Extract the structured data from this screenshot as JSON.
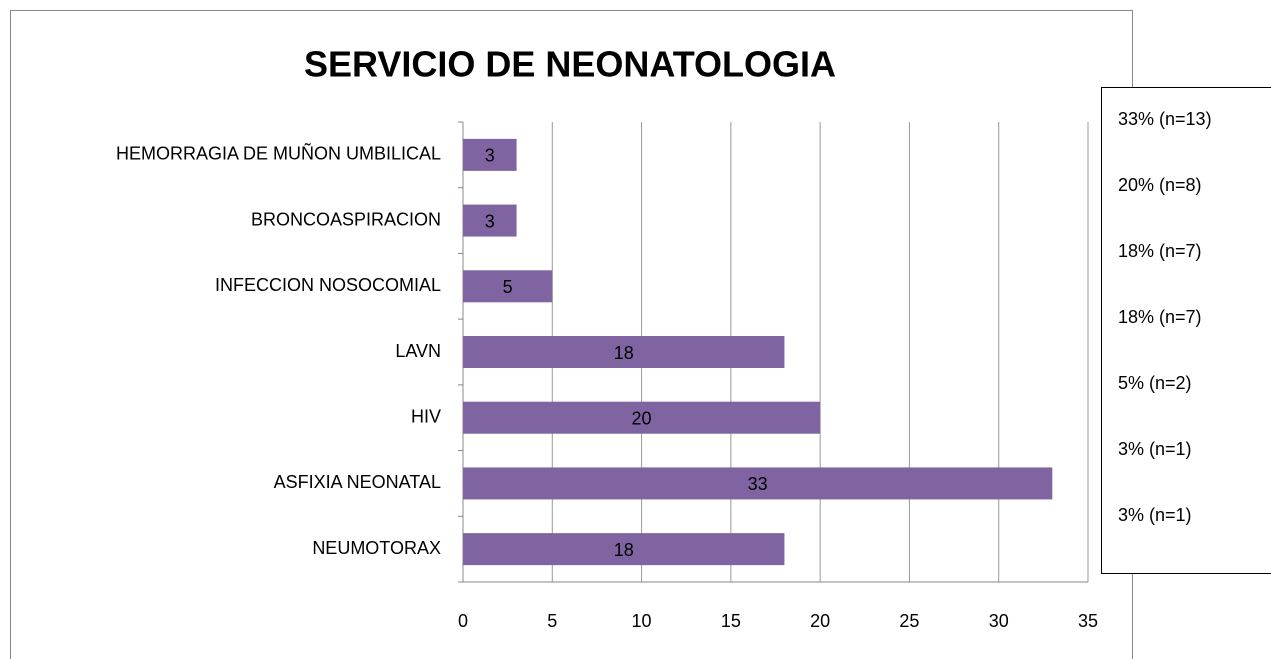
{
  "chart_data": {
    "type": "barh",
    "title": "SERVICIO DE NEONATOLOGIA",
    "categories": [
      "HEMORRAGIA DE MUÑON UMBILICAL",
      "BRONCOASPIRACION",
      "INFECCION NOSOCOMIAL",
      "LAVN",
      "HIV",
      "ASFIXIA NEONATAL",
      "NEUMOTORAX"
    ],
    "values": [
      3,
      3,
      5,
      18,
      20,
      33,
      18
    ],
    "color": "#8064a2",
    "xlim": [
      0,
      35
    ],
    "xticks": [
      0,
      5,
      10,
      15,
      20,
      25,
      30,
      35
    ],
    "grid": true,
    "annotations": [
      "33% (n=13)",
      "20% (n=8)",
      "18% (n=7)",
      "18% (n=7)",
      "5% (n=2)",
      "3% (n=1)",
      "3% (n=1)"
    ]
  }
}
